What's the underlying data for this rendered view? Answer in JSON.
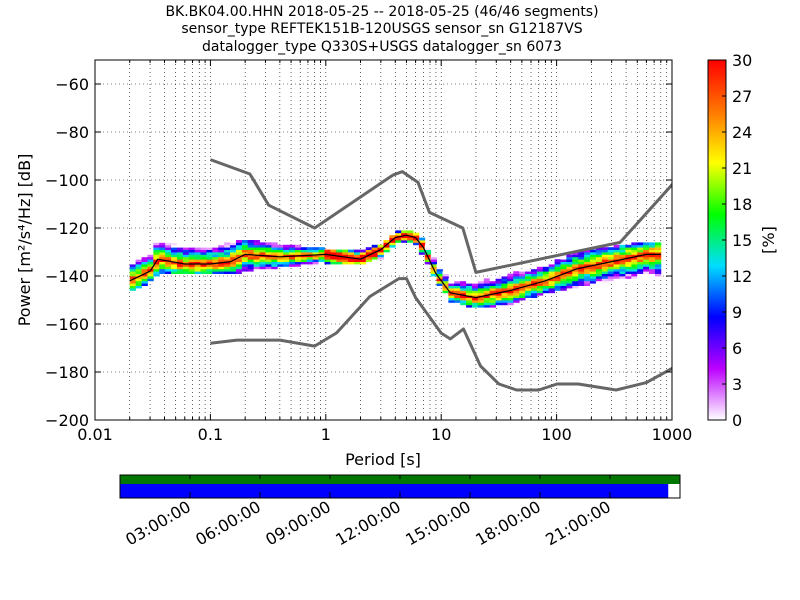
{
  "chart_data": {
    "type": "heatmap",
    "title_lines": [
      "BK.BK04.00.HHN   2018-05-25 -- 2018-05-25  (46/46 segments)",
      "sensor_type REFTEK151B-120USGS sensor_sn G12187VS",
      "datalogger_type Q330S+USGS datalogger_sn 6073"
    ],
    "xlabel": "Period [s]",
    "ylabel": "Power [m²/s⁴/Hz] [dB]",
    "x_scale": "log",
    "xlim": [
      0.01,
      1000
    ],
    "ylim": [
      -200,
      -50
    ],
    "x_ticks": [
      {
        "value": 0.01,
        "label": "0.01"
      },
      {
        "value": 0.1,
        "label": "0.1"
      },
      {
        "value": 1,
        "label": "1"
      },
      {
        "value": 10,
        "label": "10"
      },
      {
        "value": 100,
        "label": "100"
      },
      {
        "value": 1000,
        "label": "1000"
      }
    ],
    "y_ticks": [
      {
        "value": -60,
        "label": "−60"
      },
      {
        "value": -80,
        "label": "−80"
      },
      {
        "value": -100,
        "label": "−100"
      },
      {
        "value": -120,
        "label": "−120"
      },
      {
        "value": -140,
        "label": "−140"
      },
      {
        "value": -160,
        "label": "−160"
      },
      {
        "value": -180,
        "label": "−180"
      },
      {
        "value": -200,
        "label": "−200"
      }
    ],
    "grid": true,
    "colorbar": {
      "label": "[%]",
      "range": [
        0,
        30
      ],
      "ticks": [
        "0",
        "3",
        "6",
        "9",
        "12",
        "15",
        "18",
        "21",
        "24",
        "27",
        "30"
      ],
      "colormap": [
        "#ffffff",
        "#bb00ff",
        "#0000ff",
        "#00ddff",
        "#00ff00",
        "#ffff00",
        "#ff7700",
        "#ff0000"
      ]
    },
    "series": [
      {
        "role": "noise-model-high",
        "color": "#666666",
        "points": [
          [
            0.1,
            -91.5
          ],
          [
            0.22,
            -97.5
          ],
          [
            0.32,
            -110.5
          ],
          [
            0.8,
            -120
          ],
          [
            3.8,
            -98
          ],
          [
            4.6,
            -96.5
          ],
          [
            6.3,
            -101
          ],
          [
            7.9,
            -113.5
          ],
          [
            15.4,
            -120
          ],
          [
            20,
            -138.5
          ],
          [
            354.8,
            -126
          ],
          [
            10000,
            -48.5
          ]
        ]
      },
      {
        "role": "noise-model-low",
        "color": "#666666",
        "points": [
          [
            0.1,
            -168
          ],
          [
            0.17,
            -166.7
          ],
          [
            0.4,
            -166.7
          ],
          [
            0.8,
            -169.2
          ],
          [
            1.24,
            -163.7
          ],
          [
            2.4,
            -148.6
          ],
          [
            4.3,
            -141.1
          ],
          [
            5,
            -141.1
          ],
          [
            6,
            -149
          ],
          [
            10,
            -163.8
          ],
          [
            12,
            -166.2
          ],
          [
            15.6,
            -162.1
          ],
          [
            21.9,
            -177.5
          ],
          [
            31.6,
            -185
          ],
          [
            45,
            -187.5
          ],
          [
            70,
            -187.5
          ],
          [
            101,
            -185
          ],
          [
            154,
            -185
          ],
          [
            328,
            -187.5
          ],
          [
            600,
            -184.4
          ],
          [
            10000,
            -151.9
          ]
        ]
      },
      {
        "role": "mode",
        "color": "#000000",
        "points": [
          [
            0.02,
            -142
          ],
          [
            0.03,
            -138
          ],
          [
            0.035,
            -133
          ],
          [
            0.06,
            -135
          ],
          [
            0.1,
            -135
          ],
          [
            0.15,
            -134
          ],
          [
            0.2,
            -131
          ],
          [
            0.4,
            -132
          ],
          [
            1,
            -131
          ],
          [
            2,
            -133
          ],
          [
            3,
            -129
          ],
          [
            4,
            -124
          ],
          [
            5,
            -123
          ],
          [
            6,
            -124
          ],
          [
            7,
            -128
          ],
          [
            9,
            -139
          ],
          [
            12,
            -147
          ],
          [
            20,
            -149
          ],
          [
            40,
            -146
          ],
          [
            80,
            -142
          ],
          [
            150,
            -137
          ],
          [
            300,
            -134
          ],
          [
            600,
            -131
          ],
          [
            800,
            -131
          ]
        ]
      }
    ],
    "pdf_band": [
      [
        0.02,
        -146,
        -134
      ],
      [
        0.03,
        -142,
        -130
      ],
      [
        0.035,
        -139,
        -125
      ],
      [
        0.06,
        -138,
        -126
      ],
      [
        0.1,
        -139,
        -127
      ],
      [
        0.2,
        -138,
        -125
      ],
      [
        0.4,
        -136,
        -127
      ],
      [
        1,
        -135,
        -129
      ],
      [
        2,
        -135,
        -130
      ],
      [
        3,
        -132,
        -127
      ],
      [
        4,
        -126,
        -122
      ],
      [
        5,
        -125,
        -121
      ],
      [
        6,
        -126,
        -122
      ],
      [
        7,
        -131,
        -125
      ],
      [
        9,
        -141,
        -133
      ],
      [
        12,
        -150,
        -141
      ],
      [
        20,
        -153,
        -142
      ],
      [
        40,
        -151,
        -139
      ],
      [
        80,
        -147,
        -135
      ],
      [
        150,
        -144,
        -130
      ],
      [
        300,
        -142,
        -128
      ],
      [
        600,
        -141,
        -126
      ],
      [
        800,
        -141,
        -126
      ]
    ]
  },
  "timeline": {
    "tick_labels": [
      "03:00:00",
      "06:00:00",
      "09:00:00",
      "12:00:00",
      "15:00:00",
      "18:00:00",
      "21:00:00"
    ],
    "tick_hours": [
      3,
      6,
      9,
      12,
      15,
      18,
      21
    ],
    "span_hours": 24,
    "top_bar_fraction": 1.0,
    "bottom_bar_fraction": 0.979,
    "top_bar_color": "#007700",
    "bottom_bar_color": "#0000ff"
  }
}
